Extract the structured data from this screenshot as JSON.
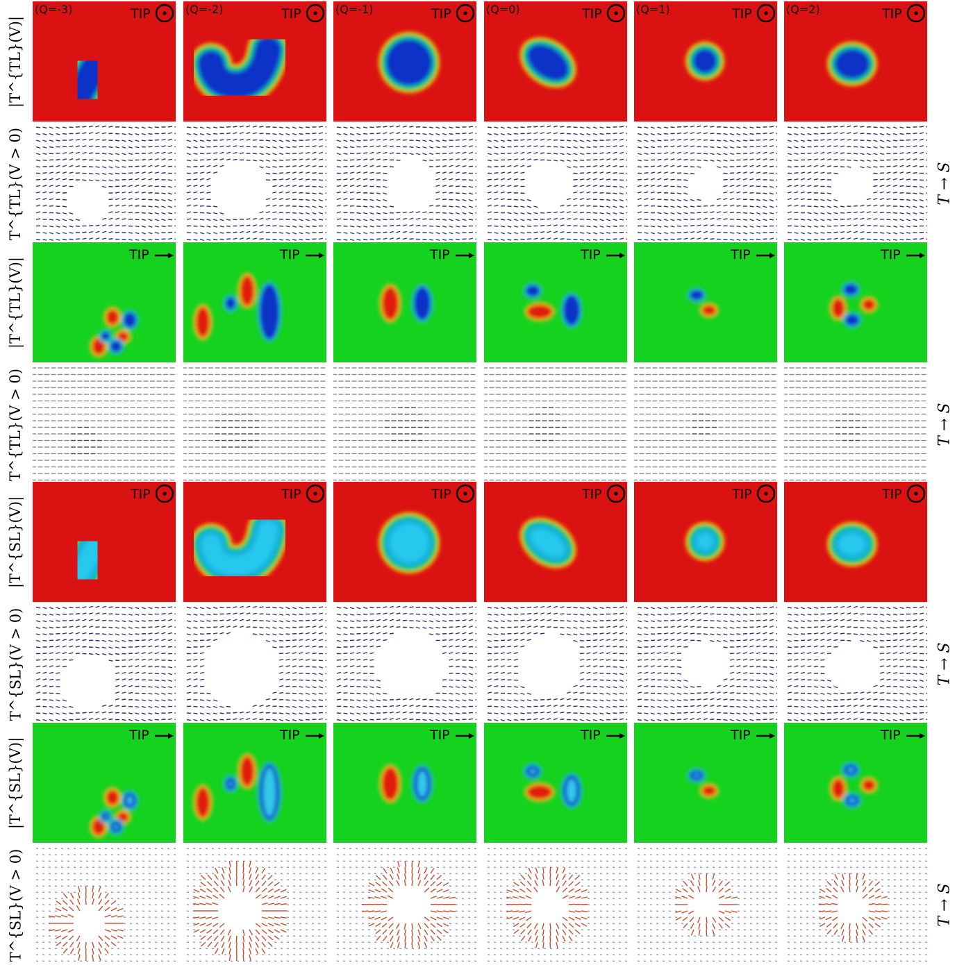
{
  "columns": [
    "(Q=-3)",
    "(Q=-2)",
    "(Q=-1)",
    "(Q=0)",
    "(Q=1)",
    "(Q=2)"
  ],
  "rows": [
    {
      "label": "|T^{TL}(V)|",
      "type": "heat",
      "scheme": "red",
      "tip": "TIP",
      "tip_symbol": "out-of-plane-circle-dot"
    },
    {
      "label": "T^{TL}(V > 0)",
      "type": "vector",
      "style": "dense-navy",
      "side_label": "T → S"
    },
    {
      "label": "|T^{TL}(V)|",
      "type": "heat",
      "scheme": "green",
      "tip": "TIP",
      "tip_symbol": "right-arrow"
    },
    {
      "label": "T^{TL}(V > 0)",
      "type": "vector",
      "style": "faint-gray",
      "side_label": "T → S"
    },
    {
      "label": "|T^{SL}(V)|",
      "type": "heat",
      "scheme": "red-cyan",
      "tip": "TIP",
      "tip_symbol": "out-of-plane-circle-dot"
    },
    {
      "label": "T^{SL}(V > 0)",
      "type": "vector",
      "style": "dense-navy-hole",
      "side_label": "T → S"
    },
    {
      "label": "|T^{SL}(V)|",
      "type": "heat",
      "scheme": "green-ring",
      "tip": "TIP",
      "tip_symbol": "right-arrow"
    },
    {
      "label": "T^{SL}(V > 0)",
      "type": "vector",
      "style": "sparse-red-blue",
      "side_label": "T → S"
    }
  ],
  "colors": {
    "red_bg": "#db1212",
    "green_bg": "#14d21e",
    "blue_core": "#1030c8",
    "cyan_core": "#18b4e0",
    "navy_arrow": "#2b3566",
    "gray_arrow": "#8a8a8a",
    "red_lobe": "#e01a10"
  }
}
